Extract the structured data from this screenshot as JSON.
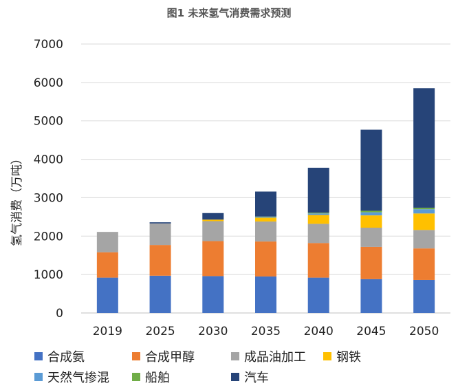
{
  "chart_data": {
    "type": "bar",
    "stacked": true,
    "title": "图1 未来氢气消费需求预测",
    "ylabel": "氢气消费（万吨）",
    "xlabel": "",
    "ylim": [
      0,
      7000
    ],
    "yticks": [
      0,
      1000,
      2000,
      3000,
      4000,
      5000,
      6000,
      7000
    ],
    "grid": true,
    "legend_position": "bottom",
    "categories": [
      "2019",
      "2025",
      "2030",
      "2035",
      "2040",
      "2045",
      "2050"
    ],
    "series": [
      {
        "name": "合成氨",
        "color": "#4472c4",
        "values": [
          920,
          970,
          960,
          950,
          920,
          880,
          860
        ]
      },
      {
        "name": "合成甲醇",
        "color": "#ed7d31",
        "values": [
          660,
          800,
          910,
          910,
          900,
          840,
          820
        ]
      },
      {
        "name": "成品油加工",
        "color": "#a5a5a5",
        "values": [
          530,
          560,
          520,
          520,
          500,
          500,
          480
        ]
      },
      {
        "name": "钢铁",
        "color": "#ffc000",
        "values": [
          0,
          0,
          40,
          100,
          230,
          320,
          430
        ]
      },
      {
        "name": "天然气掺混",
        "color": "#5b9bd5",
        "values": [
          0,
          0,
          0,
          20,
          40,
          80,
          110
        ]
      },
      {
        "name": "船舶",
        "color": "#70ad47",
        "values": [
          0,
          0,
          0,
          10,
          20,
          40,
          40
        ]
      },
      {
        "name": "汽车",
        "color": "#264478",
        "values": [
          0,
          30,
          170,
          650,
          1170,
          2110,
          3110
        ]
      }
    ]
  }
}
